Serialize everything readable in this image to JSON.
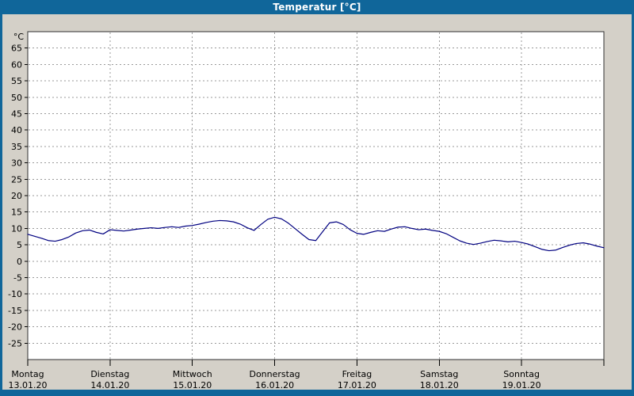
{
  "window": {
    "title": "Temperatur [°C]",
    "frame_color": "#10669a",
    "title_text_color": "#ffffff",
    "background_color": "#d4d0c8"
  },
  "chart_data": {
    "type": "line",
    "title": "Temperatur [°C]",
    "ylabel": "°C",
    "line_color": "#000080",
    "plot_background": "#ffffff",
    "plot_border_color": "#303030",
    "grid": {
      "style": "dashed",
      "color": "#9a9a9a"
    },
    "legend_position": "none",
    "ylim": [
      -30,
      70
    ],
    "yticks": [
      65,
      60,
      55,
      50,
      45,
      40,
      35,
      30,
      25,
      20,
      15,
      10,
      5,
      0,
      -5,
      -10,
      -15,
      -20,
      -25
    ],
    "days": [
      {
        "name": "Montag",
        "date": "13.01.20"
      },
      {
        "name": "Dienstag",
        "date": "14.01.20"
      },
      {
        "name": "Mittwoch",
        "date": "15.01.20"
      },
      {
        "name": "Donnerstag",
        "date": "16.01.20"
      },
      {
        "name": "Freitag",
        "date": "17.01.20"
      },
      {
        "name": "Samstag",
        "date": "18.01.20"
      },
      {
        "name": "Sonntag",
        "date": "19.01.20"
      }
    ],
    "series": [
      {
        "name": "Temperatur",
        "unit": "°C",
        "sample_interval_hours": 2,
        "values": [
          8.2,
          7.6,
          7.0,
          6.3,
          6.1,
          6.6,
          7.4,
          8.6,
          9.3,
          9.5,
          8.8,
          8.3,
          9.6,
          9.4,
          9.2,
          9.5,
          9.8,
          10.0,
          10.2,
          10.0,
          10.3,
          10.5,
          10.3,
          10.7,
          10.9,
          11.3,
          11.8,
          12.2,
          12.4,
          12.3,
          12.0,
          11.3,
          10.2,
          9.4,
          11.2,
          12.8,
          13.4,
          12.9,
          11.6,
          9.9,
          8.2,
          6.6,
          6.3,
          9.0,
          11.7,
          12.0,
          11.2,
          9.6,
          8.5,
          8.2,
          8.8,
          9.3,
          9.1,
          9.8,
          10.4,
          10.5,
          10.0,
          9.6,
          9.8,
          9.4,
          9.1,
          8.4,
          7.3,
          6.2,
          5.5,
          5.1,
          5.5,
          6.0,
          6.4,
          6.2,
          5.9,
          6.1,
          5.7,
          5.2,
          4.4,
          3.6,
          3.2,
          3.4,
          4.2,
          4.9,
          5.4,
          5.6,
          5.2,
          4.6,
          4.1
        ]
      }
    ]
  }
}
